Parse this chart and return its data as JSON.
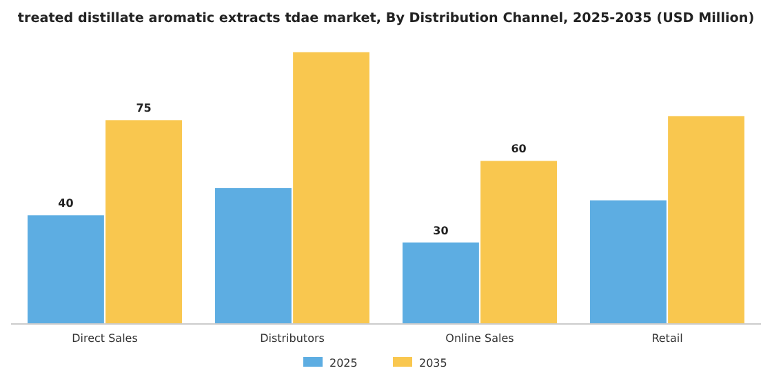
{
  "chart_data": {
    "type": "bar",
    "title": "treated distillate aromatic extracts tdae market, By Distribution Channel, 2025-2035 (USD Million)",
    "categories": [
      "Direct Sales",
      "Distributors",
      "Online Sales",
      "Retail"
    ],
    "series": [
      {
        "name": "2025",
        "color": "#5dade2",
        "values": [
          40,
          50,
          30,
          45.5
        ],
        "value_labels": [
          "40",
          null,
          "30",
          null
        ]
      },
      {
        "name": "2035",
        "color": "#f9c74f",
        "values": [
          75,
          100,
          60,
          76.5
        ],
        "value_labels": [
          "75",
          null,
          "60",
          null
        ]
      }
    ],
    "legend": "bottom"
  }
}
